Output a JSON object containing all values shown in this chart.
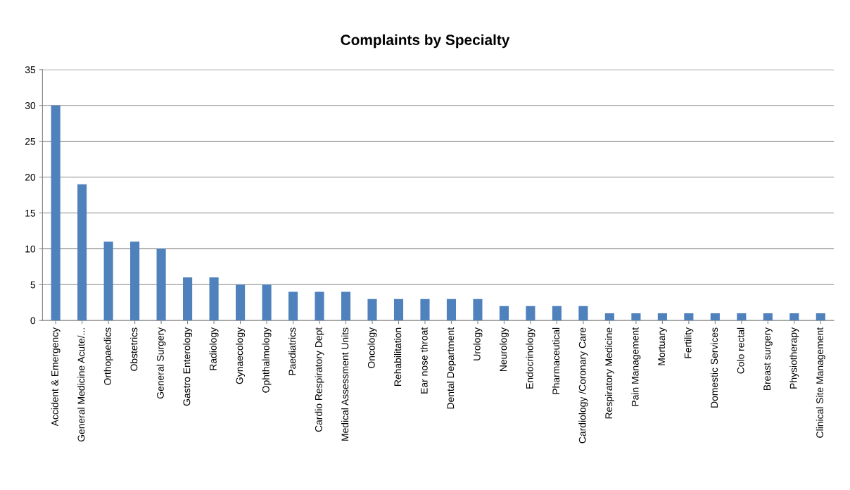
{
  "chart_data": {
    "type": "bar",
    "title": "Complaints by Specialty",
    "categories": [
      "Accident & Emergency",
      "General Medicine Acute/...",
      "Orthopaedics",
      "Obstetrics",
      "General Surgery",
      "Gastro Enterology",
      "Radiology",
      "Gynaecology",
      "Ophthalmology",
      "Paediatrics",
      "Cardio Respiratory Dept",
      "Medical Assessment Units",
      "Oncology",
      "Rehabilitation",
      "Ear nose throat",
      "Dental Department",
      "Urology",
      "Neurology",
      "Endocrinology",
      "Pharmaceutical",
      "Cardiology /Coronary Care",
      "Respiratory Medicine",
      "Pain Management",
      "Mortuary",
      "Fertility",
      "Domestic Services",
      "Colo rectal",
      "Breast surgery",
      "Physiotherapy",
      "Clinical Site Management"
    ],
    "values": [
      30,
      19,
      11,
      11,
      10,
      6,
      6,
      5,
      5,
      4,
      4,
      4,
      3,
      3,
      3,
      3,
      3,
      2,
      2,
      2,
      2,
      1,
      1,
      1,
      1,
      1,
      1,
      1,
      1,
      1
    ],
    "color": "#4f81bd",
    "ylim": [
      0,
      35
    ],
    "yticks": [
      0,
      5,
      10,
      15,
      20,
      25,
      30,
      35
    ],
    "grid": "y"
  }
}
